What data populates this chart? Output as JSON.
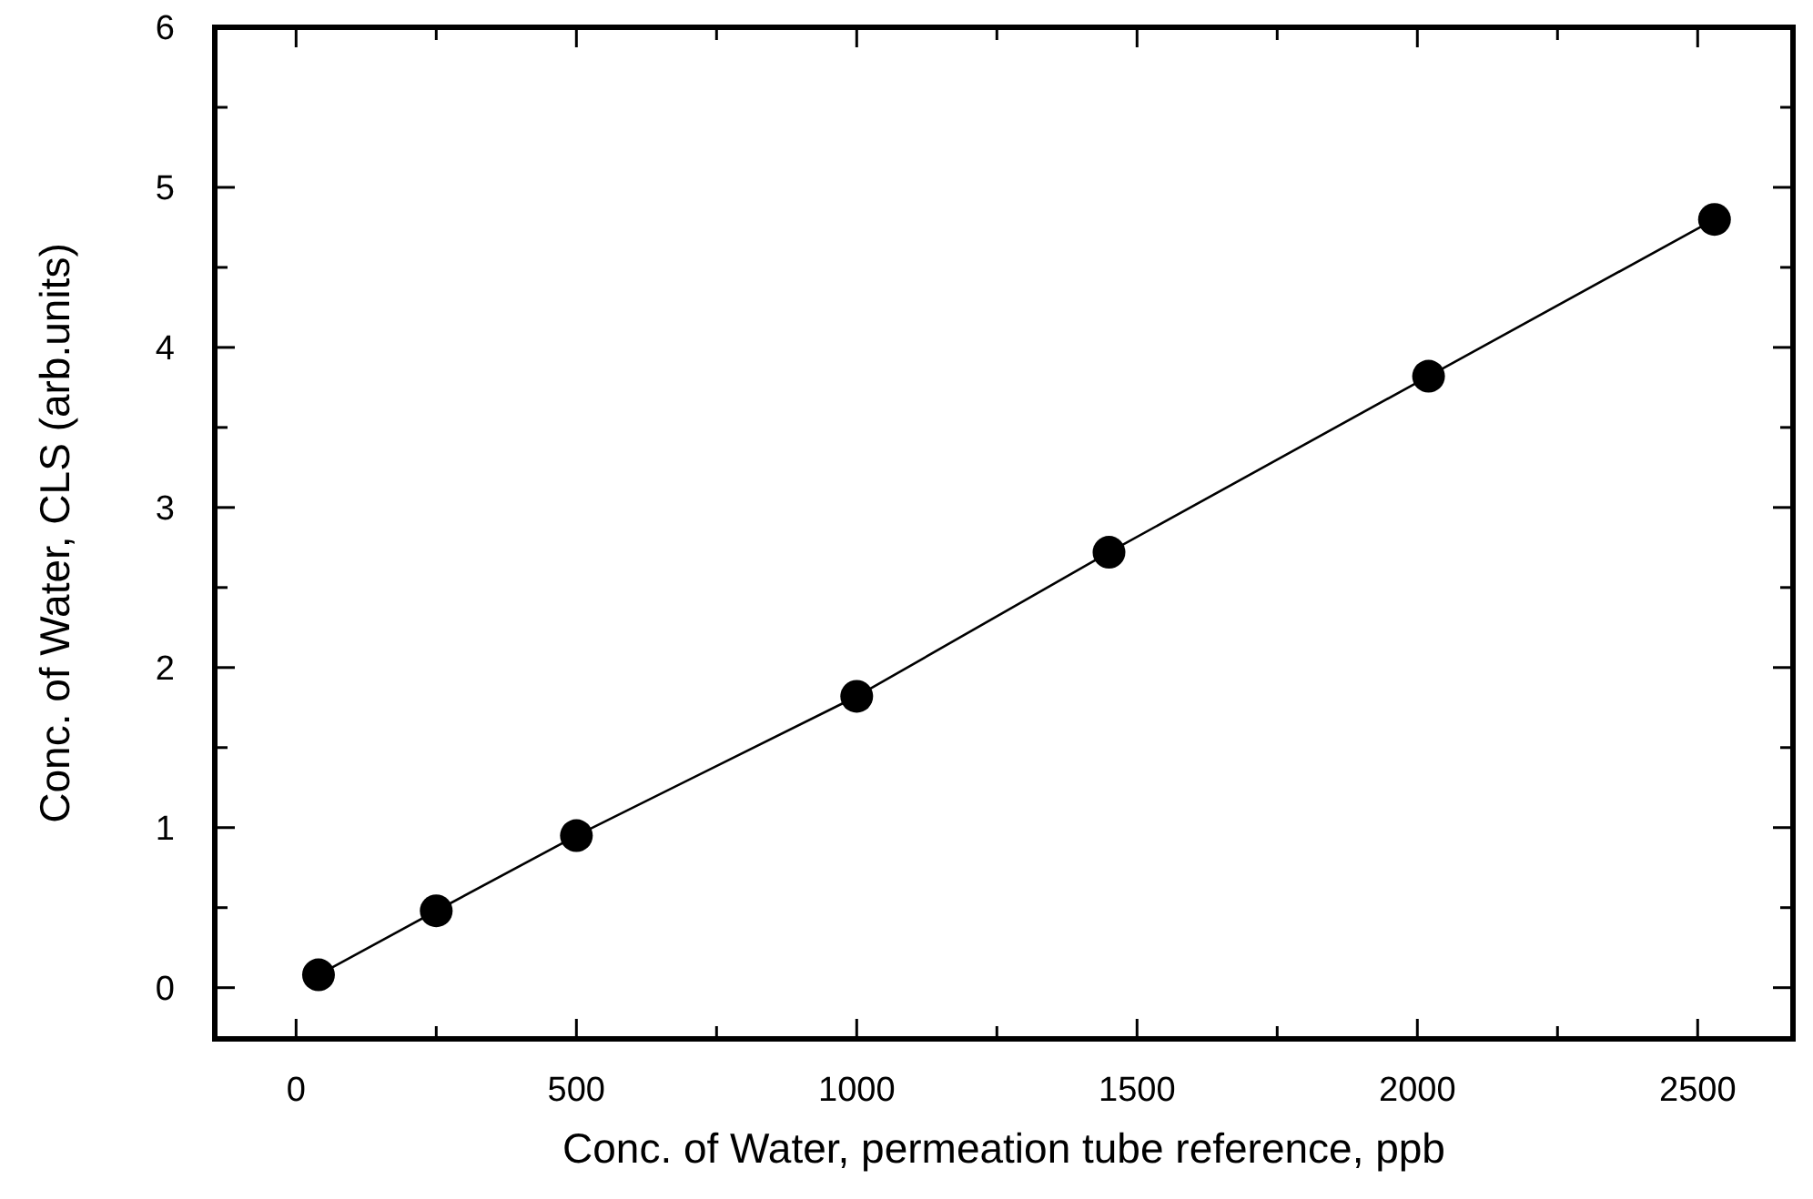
{
  "chart_data": {
    "type": "line",
    "xlabel": "Conc. of Water, permeation tube reference, ppb",
    "ylabel": "Conc. of Water, CLS (arb.units)",
    "x": [
      40,
      250,
      500,
      1000,
      1450,
      2020,
      2530
    ],
    "series": [
      {
        "color": "#000000",
        "values": [
          0.08,
          0.48,
          0.95,
          1.82,
          2.72,
          3.82,
          4.8
        ]
      }
    ],
    "marker": "circle",
    "line_style": "solid",
    "xlim": [
      -145,
      2670
    ],
    "ylim": [
      -0.32,
      6
    ],
    "xticks": [
      0,
      {
        "value": 250,
        "label": null
      },
      500,
      {
        "value": 750,
        "label": null
      },
      1000,
      {
        "value": 1250,
        "label": null
      },
      1500,
      {
        "value": 1750,
        "label": null
      },
      2000,
      {
        "value": 2250,
        "label": null
      },
      2500
    ],
    "yticks": [
      0,
      {
        "value": 0.5,
        "label": null
      },
      1,
      {
        "value": 1.5,
        "label": null
      },
      2,
      {
        "value": 2.5,
        "label": null
      },
      3,
      {
        "value": 3.5,
        "label": null
      },
      4,
      {
        "value": 4.5,
        "label": null
      },
      5,
      {
        "value": 5.5,
        "label": null
      },
      6
    ]
  }
}
